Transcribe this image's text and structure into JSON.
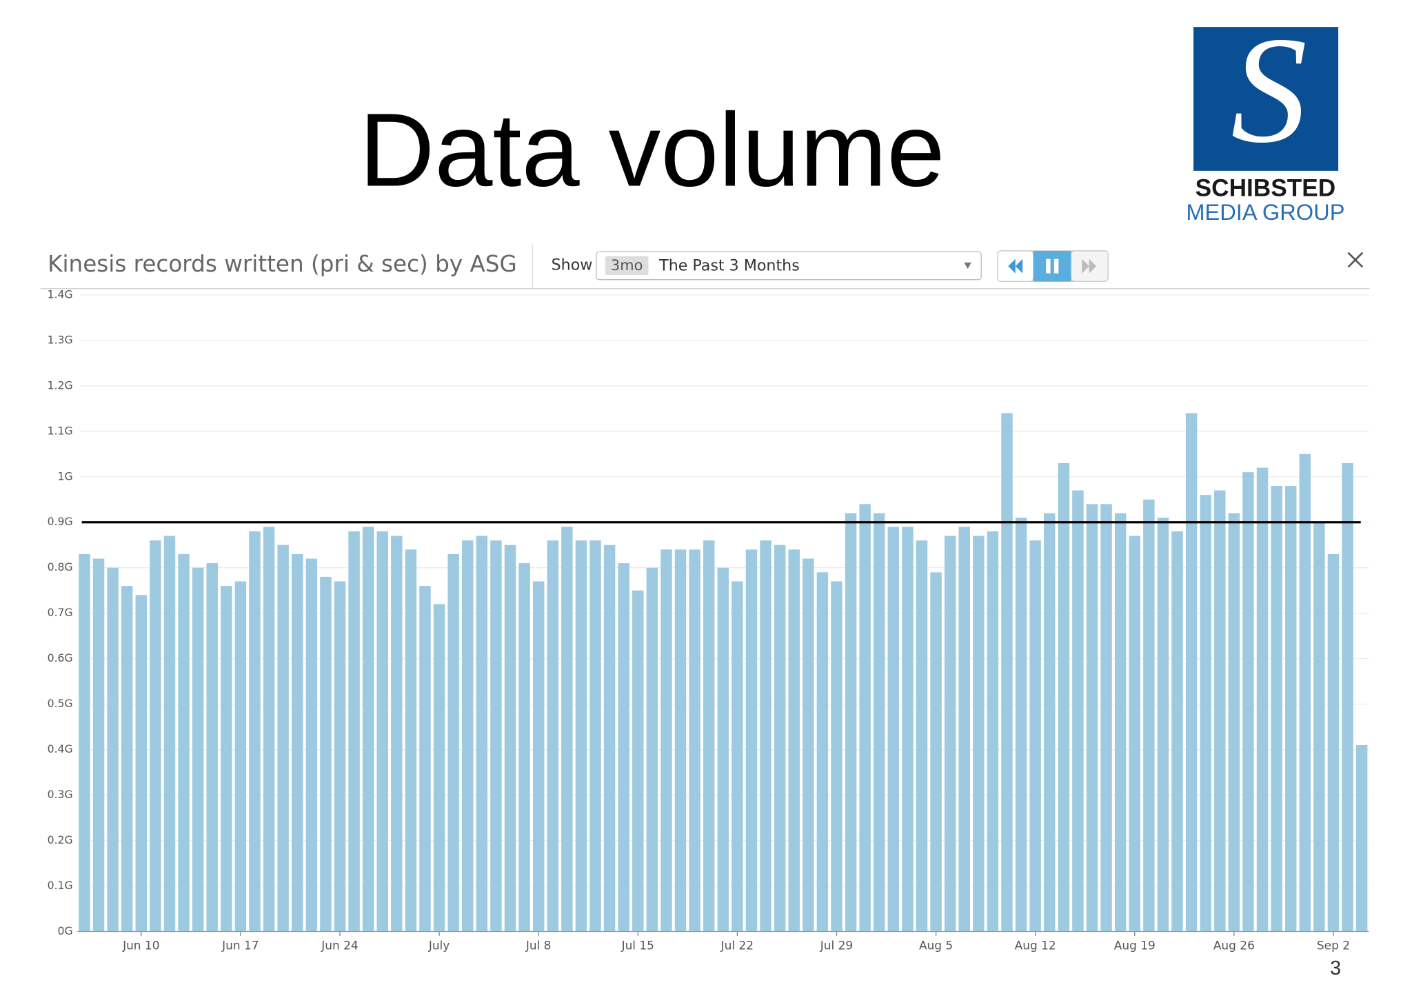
{
  "slide": {
    "title": "Data volume",
    "logo": {
      "line1": "SCHIBSTED",
      "line2": "MEDIA GROUP"
    },
    "page_number": "3"
  },
  "panel": {
    "show_label": "Show",
    "range_badge": "3mo",
    "range_text": "The Past 3 Months"
  },
  "chart_data": {
    "type": "bar",
    "title": "Kinesis records written (pri & sec) by ASG",
    "color": "#9ecae1",
    "categories": [
      null,
      null,
      null,
      null,
      "Jun 10",
      null,
      null,
      null,
      null,
      null,
      null,
      "Jun 17",
      null,
      null,
      null,
      null,
      null,
      null,
      "Jun 24",
      null,
      null,
      null,
      null,
      null,
      null,
      "July",
      null,
      null,
      null,
      null,
      null,
      null,
      "Jul 8",
      null,
      null,
      null,
      null,
      null,
      null,
      "Jul 15",
      null,
      null,
      null,
      null,
      null,
      null,
      "Jul 22",
      null,
      null,
      null,
      null,
      null,
      null,
      "Jul 29",
      null,
      null,
      null,
      null,
      null,
      null,
      "Aug 5",
      null,
      null,
      null,
      null,
      null,
      null,
      "Aug 12",
      null,
      null,
      null,
      null,
      null,
      null,
      "Aug 19",
      null,
      null,
      null,
      null,
      null,
      null,
      "Aug 26",
      null,
      null,
      null,
      null,
      null,
      null,
      "Sep 2",
      null,
      null
    ],
    "values": [
      0.83,
      0.82,
      0.8,
      0.76,
      0.74,
      0.86,
      0.87,
      0.83,
      0.8,
      0.81,
      0.76,
      0.77,
      0.88,
      0.89,
      0.85,
      0.83,
      0.82,
      0.78,
      0.77,
      0.88,
      0.89,
      0.88,
      0.87,
      0.84,
      0.76,
      0.72,
      0.83,
      0.86,
      0.87,
      0.86,
      0.85,
      0.81,
      0.77,
      0.86,
      0.89,
      0.86,
      0.86,
      0.85,
      0.81,
      0.75,
      0.8,
      0.84,
      0.84,
      0.84,
      0.86,
      0.8,
      0.77,
      0.84,
      0.86,
      0.85,
      0.84,
      0.82,
      0.79,
      0.77,
      0.92,
      0.94,
      0.92,
      0.89,
      0.89,
      0.86,
      0.79,
      0.87,
      0.89,
      0.87,
      0.88,
      1.14,
      0.91,
      0.86,
      0.92,
      1.03,
      0.97,
      0.94,
      0.94,
      0.92,
      0.87,
      0.95,
      0.91,
      0.88,
      1.14,
      0.96,
      0.97,
      0.92,
      1.01,
      1.02,
      0.98,
      0.98,
      1.05,
      0.9,
      0.83,
      1.03,
      0.41
    ],
    "threshold_line": 0.9,
    "ylim": [
      0,
      1.4
    ],
    "yticks": [
      {
        "value": 0,
        "label": "0G"
      },
      {
        "value": 0.1,
        "label": "0.1G"
      },
      {
        "value": 0.2,
        "label": "0.2G"
      },
      {
        "value": 0.3,
        "label": "0.3G"
      },
      {
        "value": 0.4,
        "label": "0.4G"
      },
      {
        "value": 0.5,
        "label": "0.5G"
      },
      {
        "value": 0.6,
        "label": "0.6G"
      },
      {
        "value": 0.7,
        "label": "0.7G"
      },
      {
        "value": 0.8,
        "label": "0.8G"
      },
      {
        "value": 0.9,
        "label": "0.9G"
      },
      {
        "value": 1,
        "label": "1G"
      },
      {
        "value": 1.1,
        "label": "1.1G"
      },
      {
        "value": 1.2,
        "label": "1.2G"
      },
      {
        "value": 1.3,
        "label": "1.3G"
      },
      {
        "value": 1.4,
        "label": "1.4G"
      }
    ],
    "grid": true
  }
}
